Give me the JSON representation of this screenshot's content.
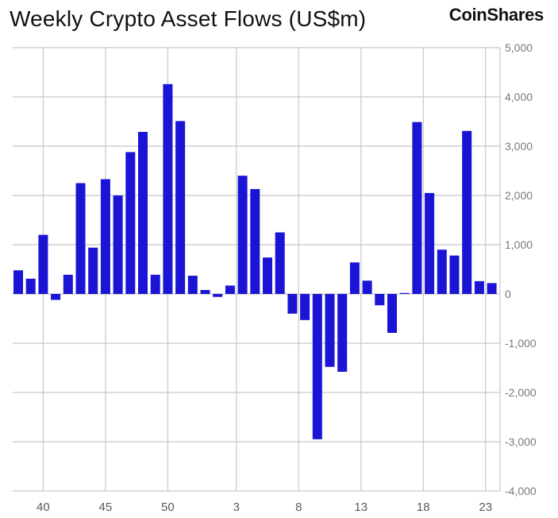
{
  "header": {
    "title": "Weekly Crypto Asset Flows (US$m)",
    "brand": "CoinShares"
  },
  "colors": {
    "bar": "#1a14d4",
    "grid": "#c8c8c8"
  },
  "chart_data": {
    "type": "bar",
    "title": "Weekly Crypto Asset Flows (US$m)",
    "xlabel": "",
    "ylabel": "",
    "ylim": [
      -4000,
      5000
    ],
    "y_ticks": [
      5000,
      4000,
      3000,
      2000,
      1000,
      0,
      -1000,
      -2000,
      -3000,
      -4000
    ],
    "y_tick_labels": [
      "5,000",
      "4,000",
      "3,000",
      "2,000",
      "1,000",
      "0",
      "-1,000",
      "-2,000",
      "-3,000",
      "-4,000"
    ],
    "x_tick_labels": [
      {
        "label": "40",
        "index": 2
      },
      {
        "label": "45",
        "index": 7
      },
      {
        "label": "50",
        "index": 12
      },
      {
        "label": "3",
        "index": 17.5
      },
      {
        "label": "8",
        "index": 22.5
      },
      {
        "label": "13",
        "index": 27.5
      },
      {
        "label": "18",
        "index": 32.5
      },
      {
        "label": "23",
        "index": 37.5
      }
    ],
    "grid": true,
    "legend": "none",
    "values": [
      480,
      310,
      1200,
      -120,
      390,
      2250,
      940,
      2330,
      2000,
      2880,
      3290,
      390,
      4260,
      3510,
      370,
      80,
      -60,
      170,
      2400,
      2130,
      740,
      1250,
      -400,
      -530,
      -2950,
      -1480,
      -1580,
      640,
      270,
      -230,
      -790,
      20,
      3490,
      2050,
      900,
      780,
      3310,
      260,
      220
    ]
  }
}
